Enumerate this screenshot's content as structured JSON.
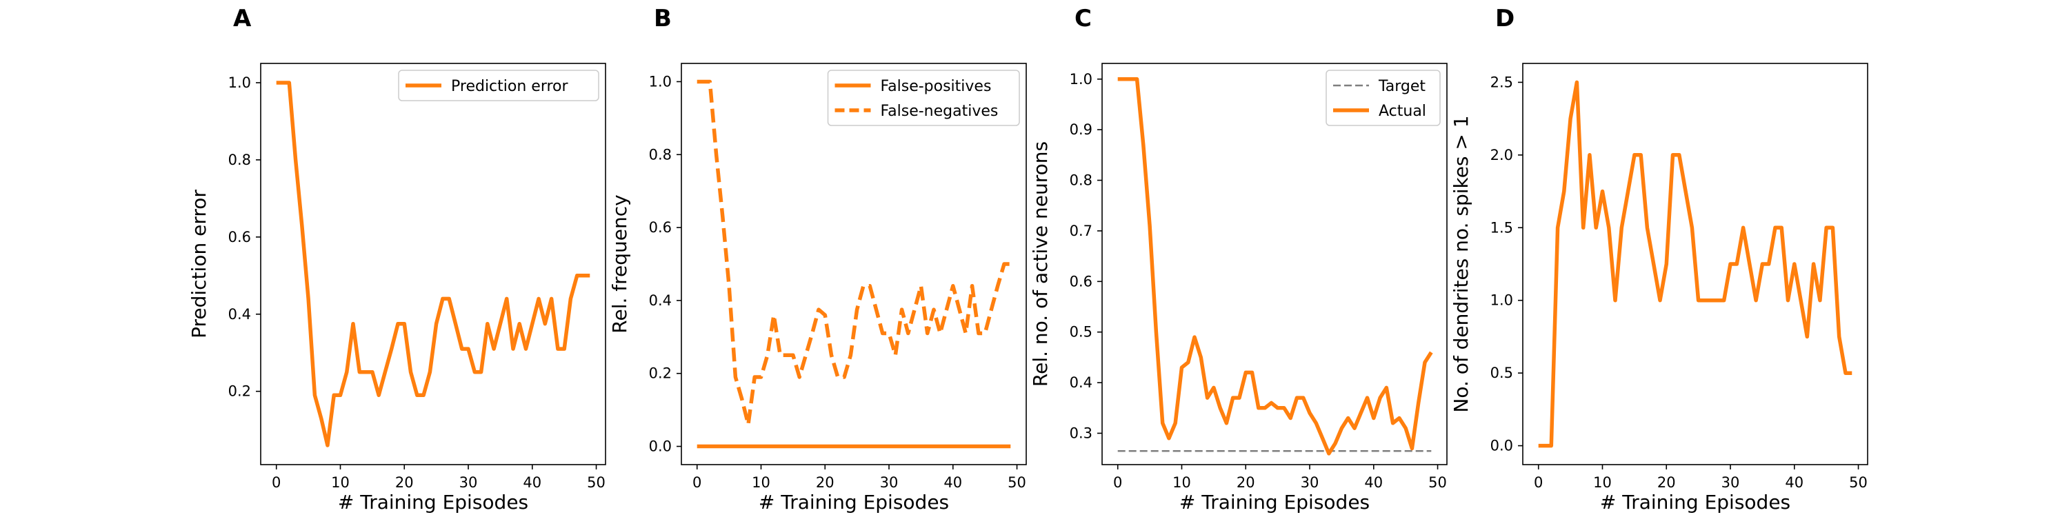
{
  "chart_data": [
    {
      "type": "line",
      "panel_label": "A",
      "xlabel": "# Training Episodes",
      "ylabel": "Prediction error",
      "xlim": [
        -2.45,
        51.45
      ],
      "ylim": [
        0.01,
        1.05
      ],
      "xticks": [
        0,
        10,
        20,
        30,
        40,
        50
      ],
      "yticks": [
        0.2,
        0.4,
        0.6,
        0.8,
        1.0
      ],
      "ytick_labels": [
        "0.2",
        "0.4",
        "0.6",
        "0.8",
        "1.0"
      ],
      "grid": false,
      "legend": "top-right",
      "series": [
        {
          "name": "Prediction error",
          "style": "solid",
          "color": "#ff7f0e",
          "x": [
            0,
            1,
            2,
            3,
            4,
            5,
            6,
            7,
            8,
            9,
            10,
            11,
            12,
            13,
            14,
            15,
            16,
            17,
            18,
            19,
            20,
            21,
            22,
            23,
            24,
            25,
            26,
            27,
            28,
            29,
            30,
            31,
            32,
            33,
            34,
            35,
            36,
            37,
            38,
            39,
            40,
            41,
            42,
            43,
            44,
            45,
            46,
            47,
            48,
            49
          ],
          "values": [
            1.0,
            1.0,
            1.0,
            0.8,
            0.63,
            0.44,
            0.19,
            0.13,
            0.06,
            0.19,
            0.19,
            0.25,
            0.375,
            0.25,
            0.25,
            0.25,
            0.19,
            0.25,
            0.31,
            0.375,
            0.375,
            0.25,
            0.19,
            0.19,
            0.25,
            0.375,
            0.44,
            0.44,
            0.375,
            0.31,
            0.31,
            0.25,
            0.25,
            0.375,
            0.31,
            0.375,
            0.44,
            0.31,
            0.375,
            0.31,
            0.375,
            0.44,
            0.375,
            0.44,
            0.31,
            0.31,
            0.44,
            0.5,
            0.5,
            0.5
          ]
        }
      ]
    },
    {
      "type": "line",
      "panel_label": "B",
      "xlabel": "# Training Episodes",
      "ylabel": "Rel. frequency",
      "xlim": [
        -2.45,
        51.45
      ],
      "ylim": [
        -0.05,
        1.05
      ],
      "xticks": [
        0,
        10,
        20,
        30,
        40,
        50
      ],
      "yticks": [
        0.0,
        0.2,
        0.4,
        0.6,
        0.8,
        1.0
      ],
      "ytick_labels": [
        "0.0",
        "0.2",
        "0.4",
        "0.6",
        "0.8",
        "1.0"
      ],
      "grid": false,
      "legend": "top-right",
      "series": [
        {
          "name": "False-positives",
          "style": "solid",
          "color": "#ff7f0e",
          "x": [
            0,
            49
          ],
          "values": [
            0.0,
            0.0
          ]
        },
        {
          "name": "False-negatives",
          "style": "dashed",
          "color": "#ff7f0e",
          "x": [
            0,
            1,
            2,
            3,
            4,
            5,
            6,
            7,
            8,
            9,
            10,
            11,
            12,
            13,
            14,
            15,
            16,
            17,
            18,
            19,
            20,
            21,
            22,
            23,
            24,
            25,
            26,
            27,
            28,
            29,
            30,
            31,
            32,
            33,
            34,
            35,
            36,
            37,
            38,
            39,
            40,
            41,
            42,
            43,
            44,
            45,
            46,
            47,
            48,
            49
          ],
          "values": [
            1.0,
            1.0,
            1.0,
            0.8,
            0.63,
            0.44,
            0.19,
            0.13,
            0.06,
            0.19,
            0.19,
            0.25,
            0.36,
            0.25,
            0.25,
            0.25,
            0.19,
            0.25,
            0.31,
            0.375,
            0.36,
            0.25,
            0.19,
            0.19,
            0.25,
            0.375,
            0.44,
            0.44,
            0.375,
            0.31,
            0.31,
            0.25,
            0.375,
            0.31,
            0.375,
            0.44,
            0.31,
            0.375,
            0.31,
            0.375,
            0.44,
            0.375,
            0.31,
            0.44,
            0.31,
            0.31,
            0.375,
            0.44,
            0.5,
            0.5
          ]
        }
      ]
    },
    {
      "type": "line",
      "panel_label": "C",
      "xlabel": "# Training Episodes",
      "ylabel": "Rel. no. of active neurons",
      "xlim": [
        -2.45,
        51.45
      ],
      "ylim": [
        0.238,
        1.031
      ],
      "xticks": [
        0,
        10,
        20,
        30,
        40,
        50
      ],
      "yticks": [
        0.3,
        0.4,
        0.5,
        0.6,
        0.7,
        0.8,
        0.9,
        1.0
      ],
      "ytick_labels": [
        "0.3",
        "0.4",
        "0.5",
        "0.6",
        "0.7",
        "0.8",
        "0.9",
        "1.0"
      ],
      "grid": false,
      "legend": "top-right",
      "series": [
        {
          "name": "Target",
          "style": "dashed-thin",
          "color": "#7f7f7f",
          "x": [
            0,
            49
          ],
          "values": [
            0.265,
            0.265
          ]
        },
        {
          "name": "Actual",
          "style": "solid",
          "color": "#ff7f0e",
          "x": [
            0,
            1,
            2,
            3,
            4,
            5,
            6,
            7,
            8,
            9,
            10,
            11,
            12,
            13,
            14,
            15,
            16,
            17,
            18,
            19,
            20,
            21,
            22,
            23,
            24,
            25,
            26,
            27,
            28,
            29,
            30,
            31,
            32,
            33,
            34,
            35,
            36,
            37,
            38,
            39,
            40,
            41,
            42,
            43,
            44,
            45,
            46,
            47,
            48,
            49
          ],
          "values": [
            1.0,
            1.0,
            1.0,
            1.0,
            0.87,
            0.71,
            0.5,
            0.32,
            0.29,
            0.32,
            0.43,
            0.44,
            0.49,
            0.45,
            0.37,
            0.39,
            0.35,
            0.32,
            0.37,
            0.37,
            0.42,
            0.42,
            0.35,
            0.35,
            0.36,
            0.35,
            0.35,
            0.33,
            0.37,
            0.37,
            0.34,
            0.32,
            0.29,
            0.26,
            0.28,
            0.31,
            0.33,
            0.31,
            0.34,
            0.37,
            0.33,
            0.37,
            0.39,
            0.32,
            0.33,
            0.31,
            0.27,
            0.36,
            0.44,
            0.46
          ]
        }
      ]
    },
    {
      "type": "line",
      "panel_label": "D",
      "xlabel": "# Training Episodes",
      "ylabel": "No. of dendrites no. spikes > 1",
      "xlim": [
        -2.45,
        51.45
      ],
      "ylim": [
        -0.13,
        2.63
      ],
      "xticks": [
        0,
        10,
        20,
        30,
        40,
        50
      ],
      "yticks": [
        0.0,
        0.5,
        1.0,
        1.5,
        2.0,
        2.5
      ],
      "ytick_labels": [
        "0.0",
        "0.5",
        "1.0",
        "1.5",
        "2.0",
        "2.5"
      ],
      "grid": false,
      "legend": "none",
      "series": [
        {
          "name": "",
          "style": "solid",
          "color": "#ff7f0e",
          "x": [
            0,
            1,
            2,
            3,
            4,
            5,
            6,
            7,
            8,
            9,
            10,
            11,
            12,
            13,
            14,
            15,
            16,
            17,
            18,
            19,
            20,
            21,
            22,
            23,
            24,
            25,
            26,
            27,
            28,
            29,
            30,
            31,
            32,
            33,
            34,
            35,
            36,
            37,
            38,
            39,
            40,
            41,
            42,
            43,
            44,
            45,
            46,
            47,
            48,
            49
          ],
          "values": [
            0.0,
            0.0,
            0.0,
            1.5,
            1.75,
            2.25,
            2.5,
            1.5,
            2.0,
            1.5,
            1.75,
            1.5,
            1.0,
            1.5,
            1.75,
            2.0,
            2.0,
            1.5,
            1.25,
            1.0,
            1.25,
            2.0,
            2.0,
            1.75,
            1.5,
            1.0,
            1.0,
            1.0,
            1.0,
            1.0,
            1.25,
            1.25,
            1.5,
            1.25,
            1.0,
            1.25,
            1.25,
            1.5,
            1.5,
            1.0,
            1.25,
            1.0,
            0.75,
            1.25,
            1.0,
            1.5,
            1.5,
            0.75,
            0.5,
            0.5
          ]
        }
      ]
    }
  ]
}
